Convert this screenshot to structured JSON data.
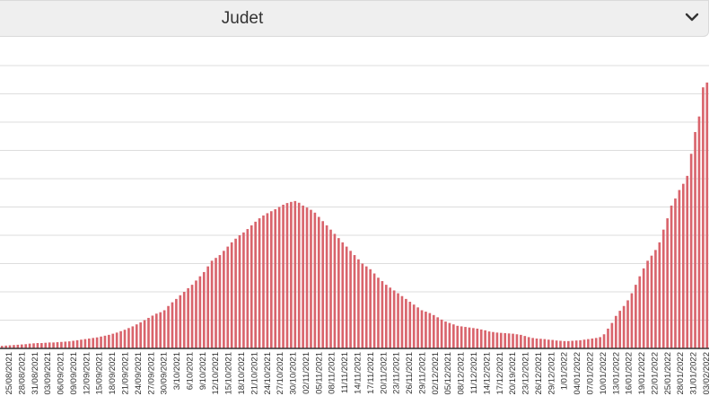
{
  "selector": {
    "label": "Judet",
    "icon": "chevron-down-icon"
  },
  "colors": {
    "bar": "#d9646c",
    "grid": "#dddddd",
    "axis": "#333333"
  },
  "chart_data": {
    "type": "bar",
    "title": "",
    "xlabel": "",
    "ylabel": "",
    "grid": true,
    "ylim": [
      0,
      100
    ],
    "x_tick_labels": [
      "25/08/2021",
      "28/08/2021",
      "31/08/2021",
      "03/09/2021",
      "06/09/2021",
      "09/09/2021",
      "12/09/2021",
      "15/09/2021",
      "18/09/2021",
      "21/09/2021",
      "24/09/2021",
      "27/09/2021",
      "30/09/2021",
      "3/10/2021",
      "6/10/2021",
      "9/10/2021",
      "12/10/2021",
      "15/10/2021",
      "18/10/2021",
      "21/10/2021",
      "24/10/2021",
      "27/10/2021",
      "30/10/2021",
      "02/11/2021",
      "05/11/2021",
      "08/11/2021",
      "11/11/2021",
      "14/11/2021",
      "17/11/2021",
      "20/11/2021",
      "23/11/2021",
      "26/11/2021",
      "29/11/2021",
      "02/12/2021",
      "05/12/2021",
      "08/12/2021",
      "11/12/2021",
      "14/12/2021",
      "17/12/2021",
      "20/19/2021",
      "23/12/2021",
      "26/12/2021",
      "29/12/2021",
      "1/01/2022",
      "04/01/2022",
      "07/01/2022",
      "10/01/2022",
      "13/01/2022",
      "16/01/2022",
      "19/01/2022",
      "22/01/2022",
      "25/01/2022",
      "28/01/2022",
      "31/01/2022",
      "03/02/2022"
    ],
    "values": [
      0.9,
      1.0,
      1.1,
      1.2,
      1.3,
      1.4,
      1.5,
      1.7,
      1.8,
      1.9,
      1.9,
      2.0,
      2.1,
      2.1,
      2.2,
      2.3,
      2.4,
      2.5,
      2.7,
      2.9,
      3.1,
      3.3,
      3.5,
      3.7,
      3.9,
      4.2,
      4.5,
      4.8,
      5.2,
      5.6,
      6.1,
      6.6,
      7.2,
      7.8,
      8.5,
      9.2,
      10.0,
      10.8,
      11.6,
      12.3,
      12.8,
      13.5,
      15.0,
      16.3,
      17.5,
      18.8,
      20.0,
      21.3,
      22.5,
      24.0,
      25.5,
      27.0,
      29.0,
      31.0,
      32.0,
      33.0,
      34.5,
      36.0,
      37.5,
      38.8,
      40.0,
      41.0,
      42.2,
      43.5,
      44.8,
      46.0,
      47.0,
      47.8,
      48.5,
      49.2,
      50.0,
      50.8,
      51.4,
      51.8,
      52.1,
      51.5,
      50.5,
      49.8,
      49.0,
      48.0,
      46.5,
      45.0,
      43.5,
      42.0,
      40.5,
      39.0,
      37.5,
      36.0,
      34.5,
      33.0,
      31.5,
      30.0,
      29.0,
      28.0,
      26.5,
      25.0,
      23.8,
      22.5,
      21.5,
      20.5,
      19.5,
      18.5,
      17.5,
      16.5,
      15.5,
      14.5,
      13.5,
      13.0,
      12.5,
      11.8,
      11.0,
      10.2,
      9.5,
      9.0,
      8.5,
      8.0,
      7.8,
      7.6,
      7.4,
      7.2,
      7.0,
      6.7,
      6.4,
      6.0,
      5.8,
      5.6,
      5.5,
      5.4,
      5.3,
      5.2,
      5.0,
      4.8,
      4.4,
      4.0,
      3.7,
      3.5,
      3.4,
      3.3,
      3.1,
      3.0,
      2.8,
      2.7,
      2.6,
      2.6,
      2.7,
      2.8,
      2.9,
      3.1,
      3.3,
      3.5,
      3.7,
      4.0,
      5.0,
      7.0,
      9.0,
      11.5,
      13.3,
      15.0,
      17.0,
      19.5,
      22.5,
      25.5,
      28.3,
      31.0,
      32.8,
      34.8,
      37.5,
      42.0,
      46.0,
      50.5,
      53.0,
      56.0,
      58.2,
      61.0,
      68.8,
      76.5,
      82.0,
      92.3,
      94.0
    ]
  }
}
